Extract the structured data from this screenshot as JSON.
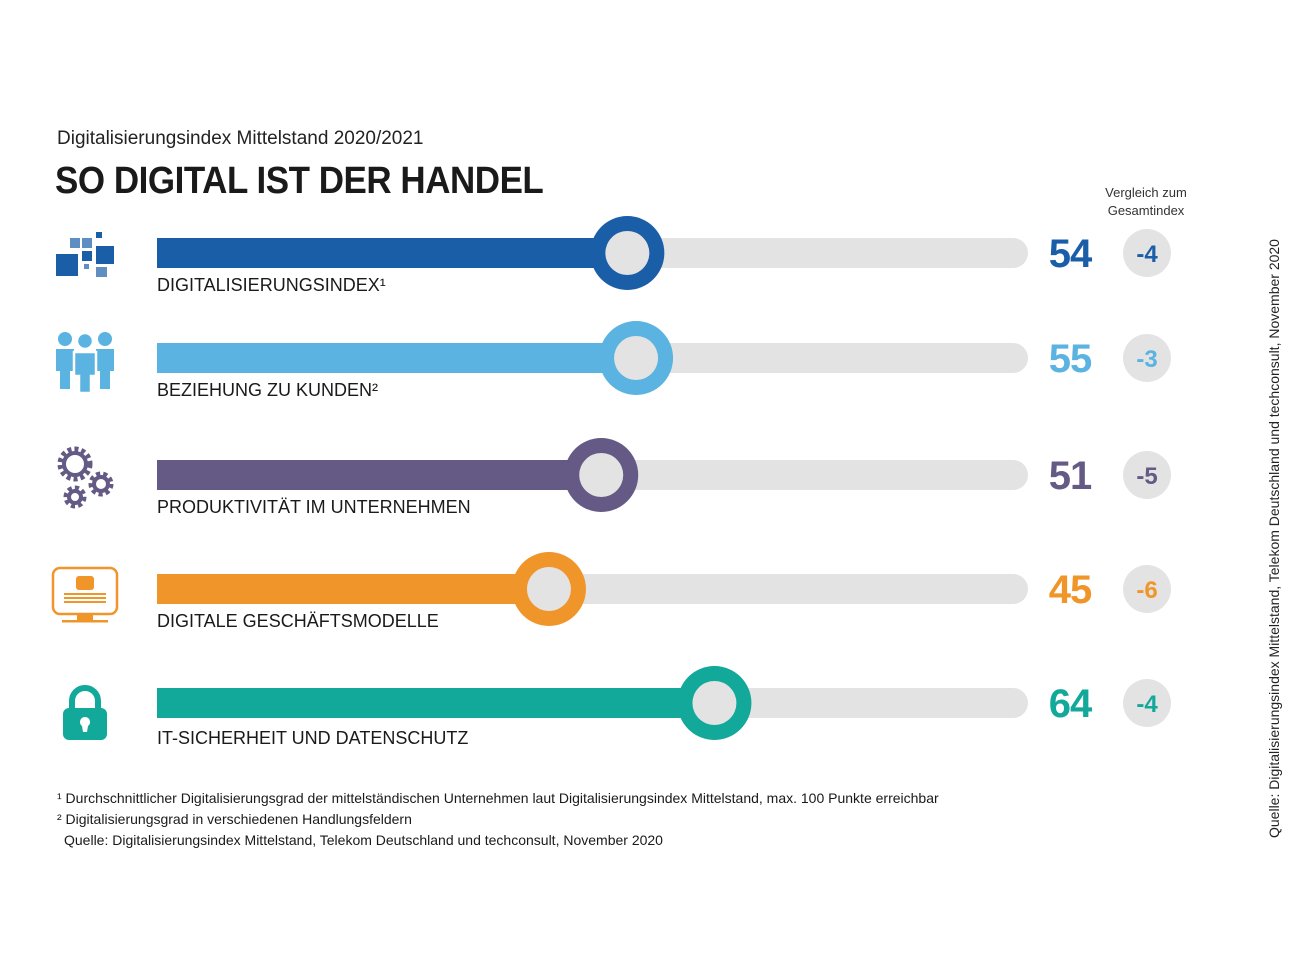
{
  "header": {
    "subtitle": "Digitalisierungsindex Mittelstand 2020/2021",
    "title": "SO DIGITAL IST DER HANDEL",
    "compare_label_line1": "Vergleich zum",
    "compare_label_line2": "Gesamtindex"
  },
  "chart_data": {
    "type": "bar",
    "title": "SO DIGITAL IST DER HANDEL",
    "subtitle": "Digitalisierungsindex Mittelstand 2020/2021",
    "xlabel": "",
    "ylabel": "",
    "xlim": [
      0,
      100
    ],
    "grid": false,
    "categories": [
      "DIGITALISIERUNGSINDEX¹",
      "BEZIEHUNG ZU KUNDEN²",
      "PRODUKTIVITÄT IM UNTERNEHMEN",
      "DIGITALE GESCHÄFTSMODELLE",
      "IT-SICHERHEIT UND DATENSCHUTZ"
    ],
    "series": [
      {
        "name": "Punkte",
        "values": [
          54,
          55,
          51,
          45,
          64
        ]
      },
      {
        "name": "Vergleich zum Gesamtindex",
        "values": [
          -4,
          -3,
          -5,
          -6,
          -4
        ]
      }
    ],
    "colors": [
      "#1a5ea8",
      "#5ab3e0",
      "#645a85",
      "#f0952a",
      "#12a89a"
    ],
    "track_color": "#e3e3e3",
    "icons": [
      "squares-icon",
      "people-icon",
      "gears-icon",
      "monitor-icon",
      "lock-icon"
    ]
  },
  "footnotes": {
    "note1": "¹ Durchschnittlicher Digitalisierungsgrad der mittelständischen Unternehmen laut Digitalisierungsindex Mittelstand, max. 100 Punkte erreichbar",
    "note2": "² Digitalisierungsgrad in verschiedenen Handlungsfeldern",
    "source": "Quelle: Digitalisierungsindex Mittelstand, Telekom Deutschland und techconsult, November 2020"
  },
  "side_source": "Quelle: Digitalisierungsindex Mittelstand, Telekom Deutschland und techconsult, November 2020"
}
